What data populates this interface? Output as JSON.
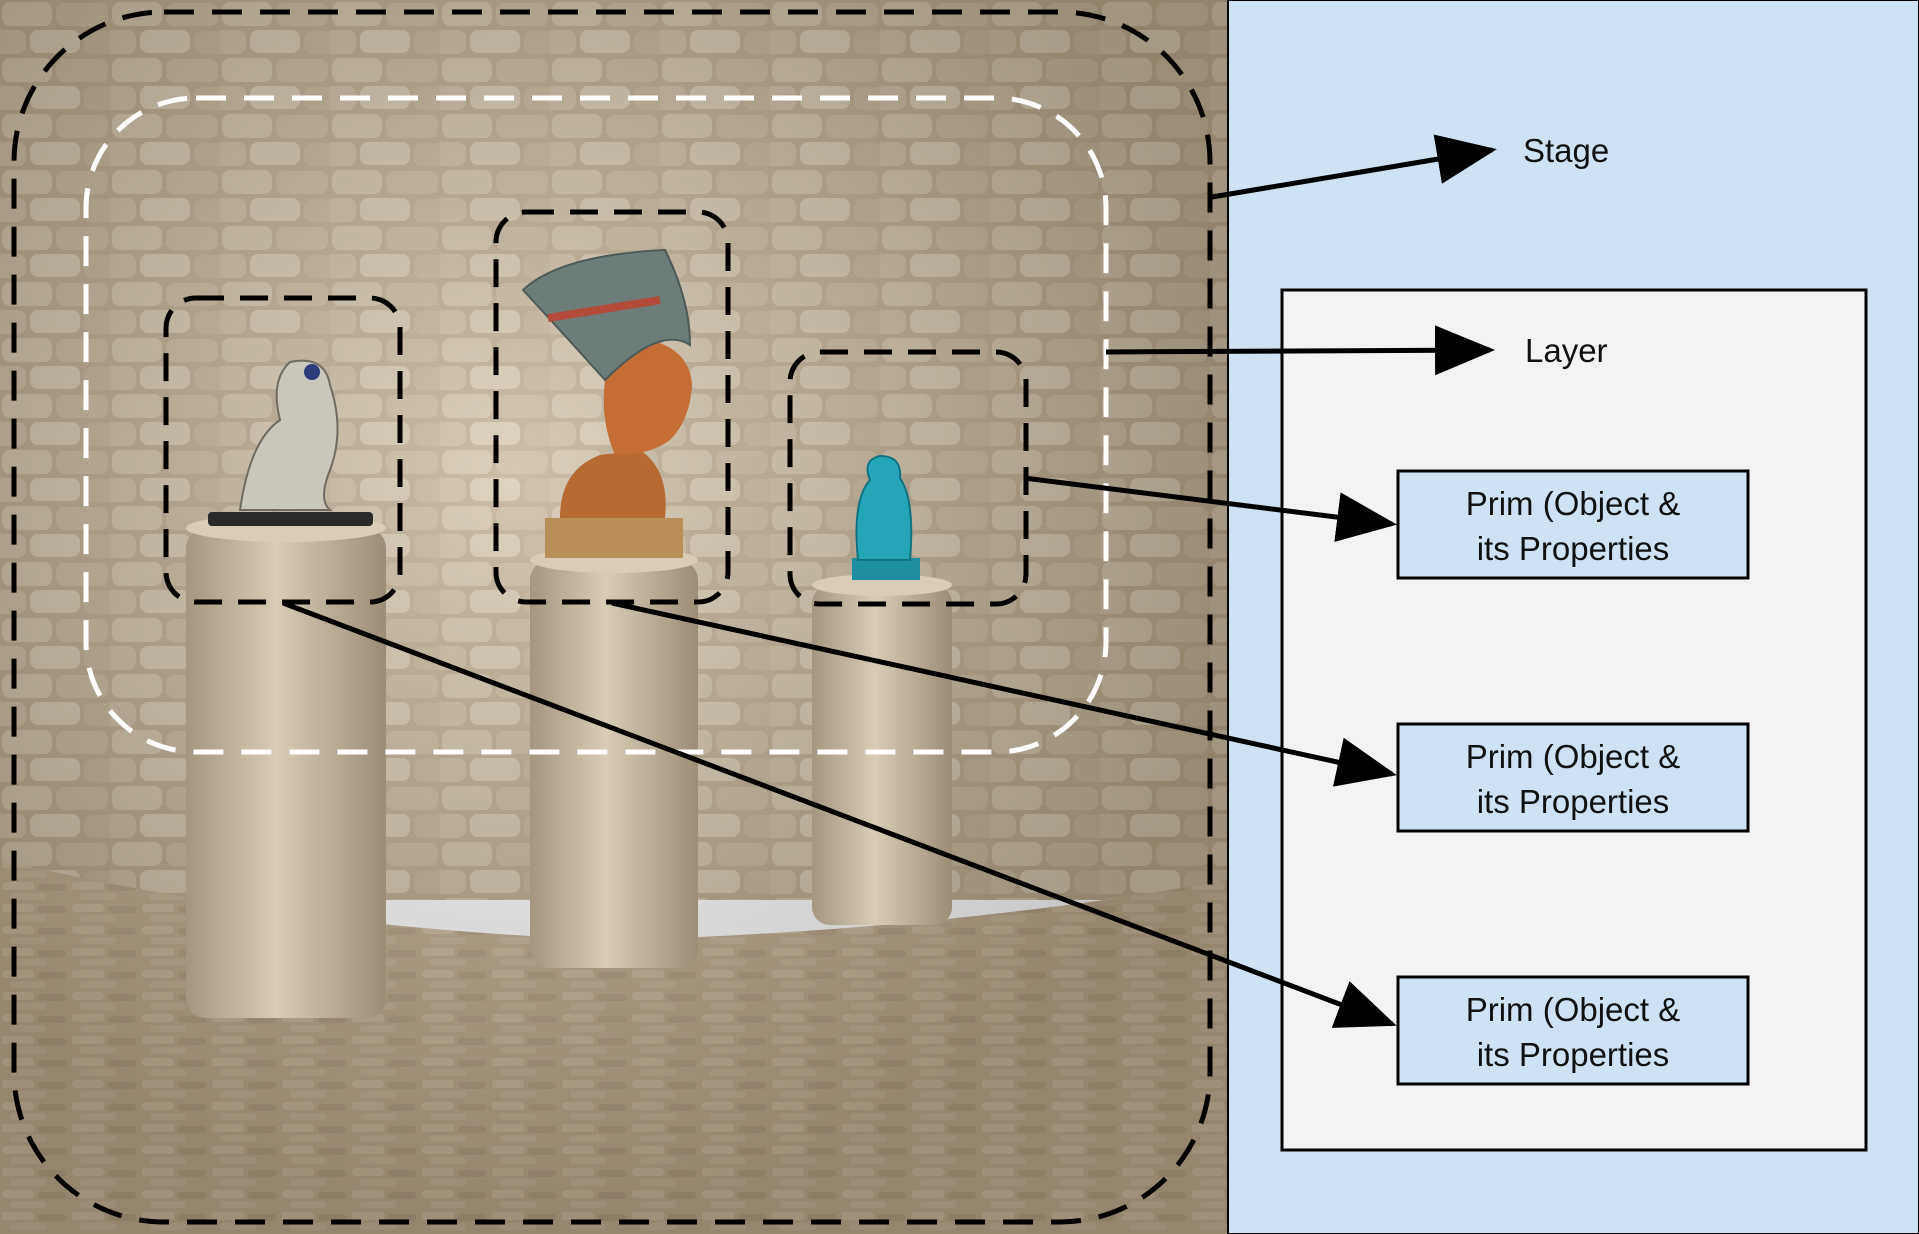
{
  "diagram": {
    "stage_label": "Stage",
    "layer_label": "Layer",
    "prims": [
      {
        "line1": "Prim (Object &",
        "line2": "its Properties"
      },
      {
        "line1": "Prim (Object &",
        "line2": "its Properties"
      },
      {
        "line1": "Prim (Object &",
        "line2": "its Properties"
      }
    ]
  },
  "colors": {
    "panel_blue": "#cfe2f3",
    "layer_gray": "#f3f3f3",
    "prim_blue": "#cfe2f3",
    "stroke": "#000000"
  }
}
